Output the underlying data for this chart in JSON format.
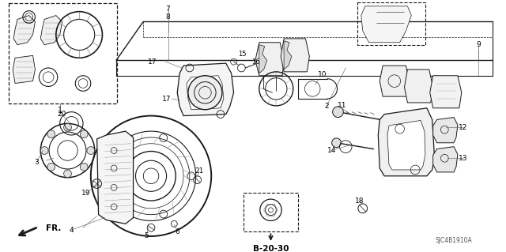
{
  "bg_color": "#ffffff",
  "line_color": "#1a1a1a",
  "fig_width": 6.4,
  "fig_height": 3.19,
  "watermark": "SJC4B1910A",
  "ref_code": "B-20-30",
  "fr_label": "FR."
}
